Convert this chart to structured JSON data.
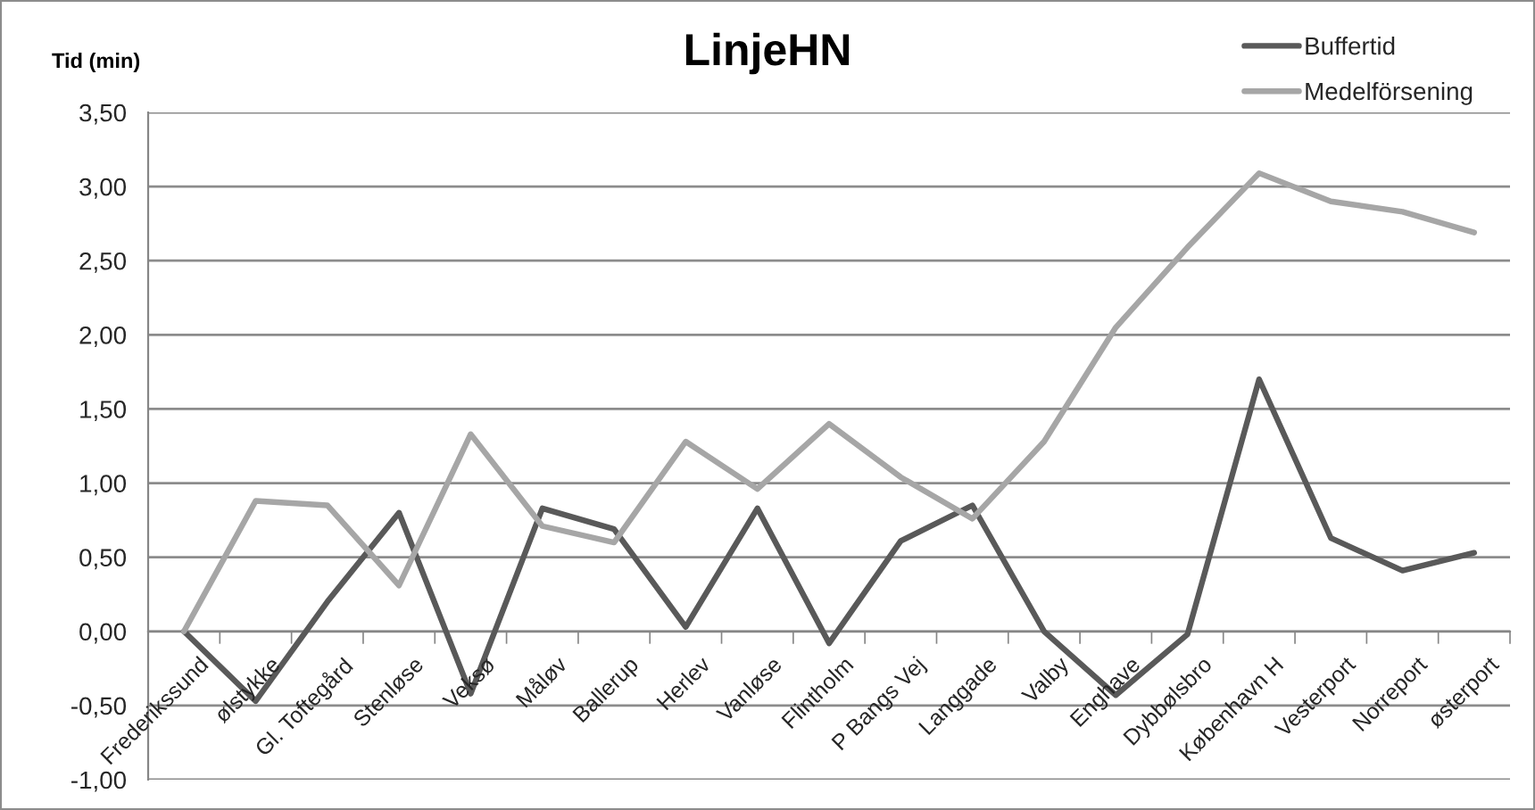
{
  "chart_data": {
    "type": "line",
    "title": "LinjeHN",
    "ylabel": "Tid (min)",
    "categories": [
      "Frederikssund",
      "ølstykke",
      "Gl. Toftegård",
      "Stenløse",
      "Veksø",
      "Måløv",
      "Ballerup",
      "Herlev",
      "Vanløse",
      "Flintholm",
      "P Bangs Vej",
      "Langgade",
      "Valby",
      "Enghave",
      "Dybbølsbro",
      "København H",
      "Vesterport",
      "Norreport",
      "østerport"
    ],
    "series": [
      {
        "name": "Buffertid",
        "color": "#595959",
        "values": [
          0.0,
          -0.47,
          0.2,
          0.8,
          -0.42,
          0.83,
          0.69,
          0.03,
          0.83,
          -0.08,
          0.61,
          0.85,
          0.0,
          -0.43,
          -0.02,
          1.7,
          0.63,
          0.41,
          0.53
        ]
      },
      {
        "name": "Medelförsening",
        "color": "#a6a6a6",
        "values": [
          0.0,
          0.88,
          0.85,
          0.31,
          1.33,
          0.71,
          0.6,
          1.28,
          0.96,
          1.4,
          1.04,
          0.76,
          1.28,
          2.05,
          2.59,
          3.09,
          2.9,
          2.83,
          2.69
        ]
      }
    ],
    "ylim": [
      -1,
      3.5
    ],
    "yticks": [
      {
        "value": -1,
        "label": "-1,00"
      },
      {
        "value": -0.5,
        "label": "-0,50"
      },
      {
        "value": 0,
        "label": "0,00"
      },
      {
        "value": 0.5,
        "label": "0,50"
      },
      {
        "value": 1,
        "label": "1,00"
      },
      {
        "value": 1.5,
        "label": "1,50"
      },
      {
        "value": 2,
        "label": "2,00"
      },
      {
        "value": 2.5,
        "label": "2,50"
      },
      {
        "value": 3,
        "label": "3,00"
      },
      {
        "value": 3.5,
        "label": "3,50"
      }
    ],
    "grid": "y",
    "legend": "top right",
    "line_style": "solid"
  }
}
